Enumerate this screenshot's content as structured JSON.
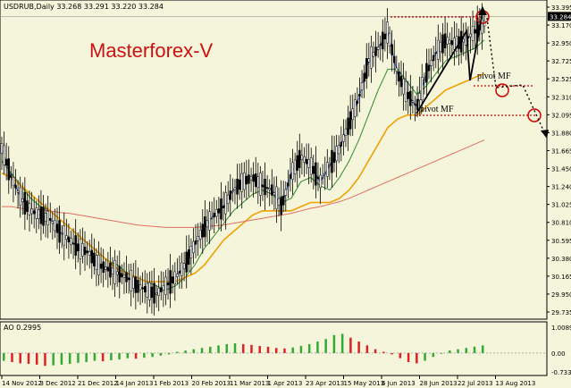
{
  "chart_data": [
    {
      "type": "candlestick",
      "symbol_header": "USDRUB,Daily  33.268 33.291 33.220 33.284",
      "title": "Masterforex-V",
      "y_ticks": [
        "33.395",
        "33.170",
        "32.950",
        "32.725",
        "32.525",
        "32.310",
        "32.095",
        "31.880",
        "31.665",
        "31.450",
        "31.240",
        "31.025",
        "30.810",
        "30.595",
        "30.380",
        "30.165",
        "29.950",
        "29.735"
      ],
      "current_price": "33.284",
      "ylim": [
        29.735,
        33.395
      ],
      "x_ticks": [
        "14 Nov 2012",
        "3 Dec 2012",
        "21 Dec 2012",
        "14 Jan 2013",
        "1 Feb 2013",
        "20 Feb 2013",
        "11 Mar 2013",
        "1 Apr 2013",
        "23 Apr 2013",
        "15 May 2013",
        "6 Jun 2013",
        "28 Jun 2013",
        "22 Jul 2013",
        "13 Aug 2013"
      ],
      "series": [
        {
          "name": "",
          "color": "#2255dd",
          "values": [
            31.7,
            31.35,
            31.1,
            30.95,
            30.9,
            30.85,
            30.7,
            30.6,
            30.5,
            30.45,
            30.3,
            30.25,
            30.2,
            30.15,
            30.05,
            30.0,
            29.95,
            30.05,
            30.15,
            30.3,
            30.55,
            30.75,
            30.9,
            31.0,
            31.2,
            31.3,
            31.35,
            31.25,
            31.2,
            31.0,
            31.4,
            31.6,
            31.5,
            31.3,
            31.5,
            31.7,
            32.0,
            32.3,
            32.75,
            32.9,
            33.1,
            32.6,
            32.35,
            32.2,
            32.6,
            32.85,
            33.0,
            32.95,
            33.0,
            33.1,
            33.2
          ]
        },
        {
          "name": "",
          "color": "#2e8b2e",
          "values": [
            31.55,
            31.4,
            31.25,
            31.1,
            31.0,
            30.95,
            30.85,
            30.75,
            30.65,
            30.55,
            30.45,
            30.35,
            30.3,
            30.2,
            30.15,
            30.1,
            30.05,
            30.0,
            30.05,
            30.15,
            30.3,
            30.5,
            30.65,
            30.8,
            30.95,
            31.05,
            31.15,
            31.2,
            31.15,
            31.05,
            31.1,
            31.3,
            31.35,
            31.25,
            31.2,
            31.35,
            31.55,
            31.8,
            32.1,
            32.4,
            32.65,
            32.65,
            32.5,
            32.35,
            32.45,
            32.6,
            32.75,
            32.8,
            32.85,
            32.9,
            33.0
          ]
        },
        {
          "name": "",
          "color": "#f0a000",
          "values": [
            31.4,
            31.35,
            31.25,
            31.15,
            31.05,
            30.95,
            30.85,
            30.75,
            30.65,
            30.55,
            30.45,
            30.35,
            30.25,
            30.2,
            30.15,
            30.1,
            30.1,
            30.1,
            30.1,
            30.15,
            30.2,
            30.3,
            30.45,
            30.6,
            30.7,
            30.8,
            30.9,
            30.95,
            30.95,
            30.95,
            30.95,
            31.0,
            31.05,
            31.05,
            31.05,
            31.1,
            31.2,
            31.35,
            31.55,
            31.75,
            31.95,
            32.05,
            32.1,
            32.1,
            32.2,
            32.3,
            32.4,
            32.45,
            32.5,
            32.55,
            32.6
          ]
        },
        {
          "name": "",
          "color": "#e07060",
          "values": [
            31.0,
            31.0,
            30.98,
            30.97,
            30.96,
            30.95,
            30.93,
            30.92,
            30.9,
            30.88,
            30.86,
            30.84,
            30.82,
            30.8,
            30.78,
            30.77,
            30.76,
            30.75,
            30.75,
            30.75,
            30.75,
            30.76,
            30.77,
            30.78,
            30.8,
            30.82,
            30.84,
            30.86,
            30.88,
            30.9,
            30.92,
            30.95,
            30.98,
            31.0,
            31.03,
            31.06,
            31.1,
            31.15,
            31.2,
            31.25,
            31.3,
            31.35,
            31.4,
            31.45,
            31.5,
            31.55,
            31.6,
            31.65,
            31.7,
            31.75,
            31.8
          ]
        }
      ],
      "annotations": [
        "pivot MF",
        "pivot MF"
      ]
    },
    {
      "type": "bar",
      "title": "AO 0.2995",
      "y_ticks": [
        "1.0089",
        "0.00",
        "-0.7339"
      ],
      "ylim": [
        -0.7339,
        1.0089
      ],
      "values": [
        -0.3,
        -0.35,
        -0.4,
        -0.42,
        -0.45,
        -0.5,
        -0.48,
        -0.45,
        -0.42,
        -0.38,
        -0.35,
        -0.3,
        -0.32,
        -0.28,
        -0.25,
        -0.2,
        -0.22,
        -0.18,
        -0.15,
        -0.1,
        -0.05,
        0.05,
        0.1,
        0.15,
        0.2,
        0.25,
        0.3,
        0.35,
        0.38,
        0.35,
        0.32,
        0.28,
        0.25,
        0.2,
        0.18,
        0.22,
        0.28,
        0.35,
        0.45,
        0.55,
        0.7,
        0.75,
        0.6,
        0.45,
        0.3,
        0.15,
        0.05,
        -0.05,
        -0.2,
        -0.35,
        -0.4,
        -0.3,
        -0.15,
        0.0,
        0.1,
        0.15,
        0.2,
        0.25,
        0.3
      ]
    }
  ]
}
